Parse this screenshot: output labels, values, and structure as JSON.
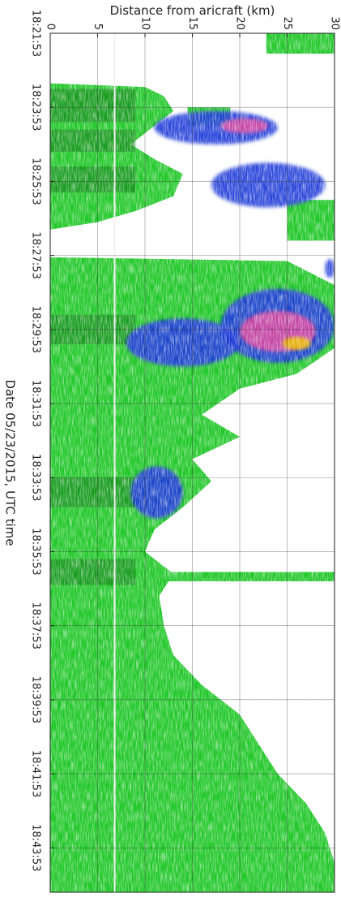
{
  "chart_data": {
    "type": "heatmap",
    "orientation": "rotated-90-clockwise",
    "title": "",
    "xlabel": "Date 05/23/2015, UTC time",
    "ylabel": "Distance from aricraft (km)",
    "x_ticks": [
      "18:21:53",
      "18:23:53",
      "18:25:53",
      "18:27:53",
      "18:29:53",
      "18:31:53",
      "18:33:53",
      "18:35:53",
      "18:37:53",
      "18:39:53",
      "18:41:53",
      "18:43:53"
    ],
    "x_tick_values_min": [
      0,
      2,
      4,
      6,
      8,
      10,
      12,
      14,
      16,
      18,
      20,
      22
    ],
    "x_range_min": [
      0,
      23.2
    ],
    "y_ticks": [
      "0",
      "5",
      "10",
      "15",
      "20",
      "25",
      "30"
    ],
    "y_tick_values": [
      0,
      5,
      10,
      15,
      20,
      25,
      30
    ],
    "y_range_km": [
      0,
      30
    ],
    "grid": true,
    "colors": {
      "low": "#22c82a",
      "low_dark": "#137a17",
      "mid": "#1e3ad8",
      "mid_light": "#7f93ee",
      "high": "#e2469e",
      "peak": "#e8b400",
      "aircraft_line": "#f2f2f2"
    },
    "aircraft_line_km": 6.8,
    "green_extent": [
      {
        "t": 0.0,
        "r": 0
      },
      {
        "t": 1.35,
        "r": 0
      },
      {
        "t": 1.45,
        "r": 10
      },
      {
        "t": 1.7,
        "r": 12
      },
      {
        "t": 2.1,
        "r": 13
      },
      {
        "t": 2.5,
        "r": 11
      },
      {
        "t": 3.0,
        "r": 8.5
      },
      {
        "t": 3.4,
        "r": 11
      },
      {
        "t": 3.8,
        "r": 14
      },
      {
        "t": 4.4,
        "r": 13
      },
      {
        "t": 4.8,
        "r": 9
      },
      {
        "t": 5.1,
        "r": 5
      },
      {
        "t": 5.3,
        "r": 0
      },
      {
        "t": 6.05,
        "r": 0
      },
      {
        "t": 6.15,
        "r": 25
      },
      {
        "t": 6.8,
        "r": 30
      },
      {
        "t": 8.5,
        "r": 30
      },
      {
        "t": 9.2,
        "r": 26
      },
      {
        "t": 9.6,
        "r": 20
      },
      {
        "t": 10.3,
        "r": 16
      },
      {
        "t": 10.9,
        "r": 20
      },
      {
        "t": 11.5,
        "r": 15
      },
      {
        "t": 12.1,
        "r": 17
      },
      {
        "t": 12.8,
        "r": 14
      },
      {
        "t": 13.4,
        "r": 11
      },
      {
        "t": 14.0,
        "r": 10
      },
      {
        "t": 14.6,
        "r": 13
      },
      {
        "t": 15.2,
        "r": 11.5
      },
      {
        "t": 16.0,
        "r": 12
      },
      {
        "t": 16.8,
        "r": 13
      },
      {
        "t": 17.6,
        "r": 16
      },
      {
        "t": 18.4,
        "r": 20
      },
      {
        "t": 19.2,
        "r": 22
      },
      {
        "t": 20.0,
        "r": 24
      },
      {
        "t": 20.8,
        "r": 27
      },
      {
        "t": 21.6,
        "r": 29
      },
      {
        "t": 22.4,
        "r": 30
      },
      {
        "t": 23.2,
        "r": 30
      }
    ],
    "green_patches": [
      {
        "t": [
          0.0,
          0.55
        ],
        "r": [
          22.8,
          30
        ]
      },
      {
        "t": [
          4.5,
          5.6
        ],
        "r": [
          25,
          30
        ]
      },
      {
        "t": [
          2.0,
          2.5
        ],
        "r": [
          14.5,
          19
        ]
      },
      {
        "t": [
          14.55,
          14.8
        ],
        "r": [
          0,
          30
        ]
      }
    ],
    "blue_patches": [
      {
        "t": [
          2.1,
          3.0
        ],
        "r": [
          11,
          24
        ]
      },
      {
        "t": [
          3.5,
          4.7
        ],
        "r": [
          17,
          29
        ]
      },
      {
        "t": [
          6.9,
          8.9
        ],
        "r": [
          18,
          30
        ]
      },
      {
        "t": [
          7.7,
          9.0
        ],
        "r": [
          8,
          20
        ]
      },
      {
        "t": [
          11.7,
          13.1
        ],
        "r": [
          8.5,
          14
        ]
      },
      {
        "t": [
          6.1,
          6.6
        ],
        "r": [
          29,
          30
        ]
      }
    ],
    "pink_patches": [
      {
        "t": [
          2.3,
          2.7
        ],
        "r": [
          18,
          23
        ]
      },
      {
        "t": [
          7.5,
          8.6
        ],
        "r": [
          20,
          28
        ]
      }
    ],
    "peak_patches": [
      {
        "t": [
          8.2,
          8.55
        ],
        "r": [
          24.5,
          27.5
        ]
      }
    ]
  }
}
